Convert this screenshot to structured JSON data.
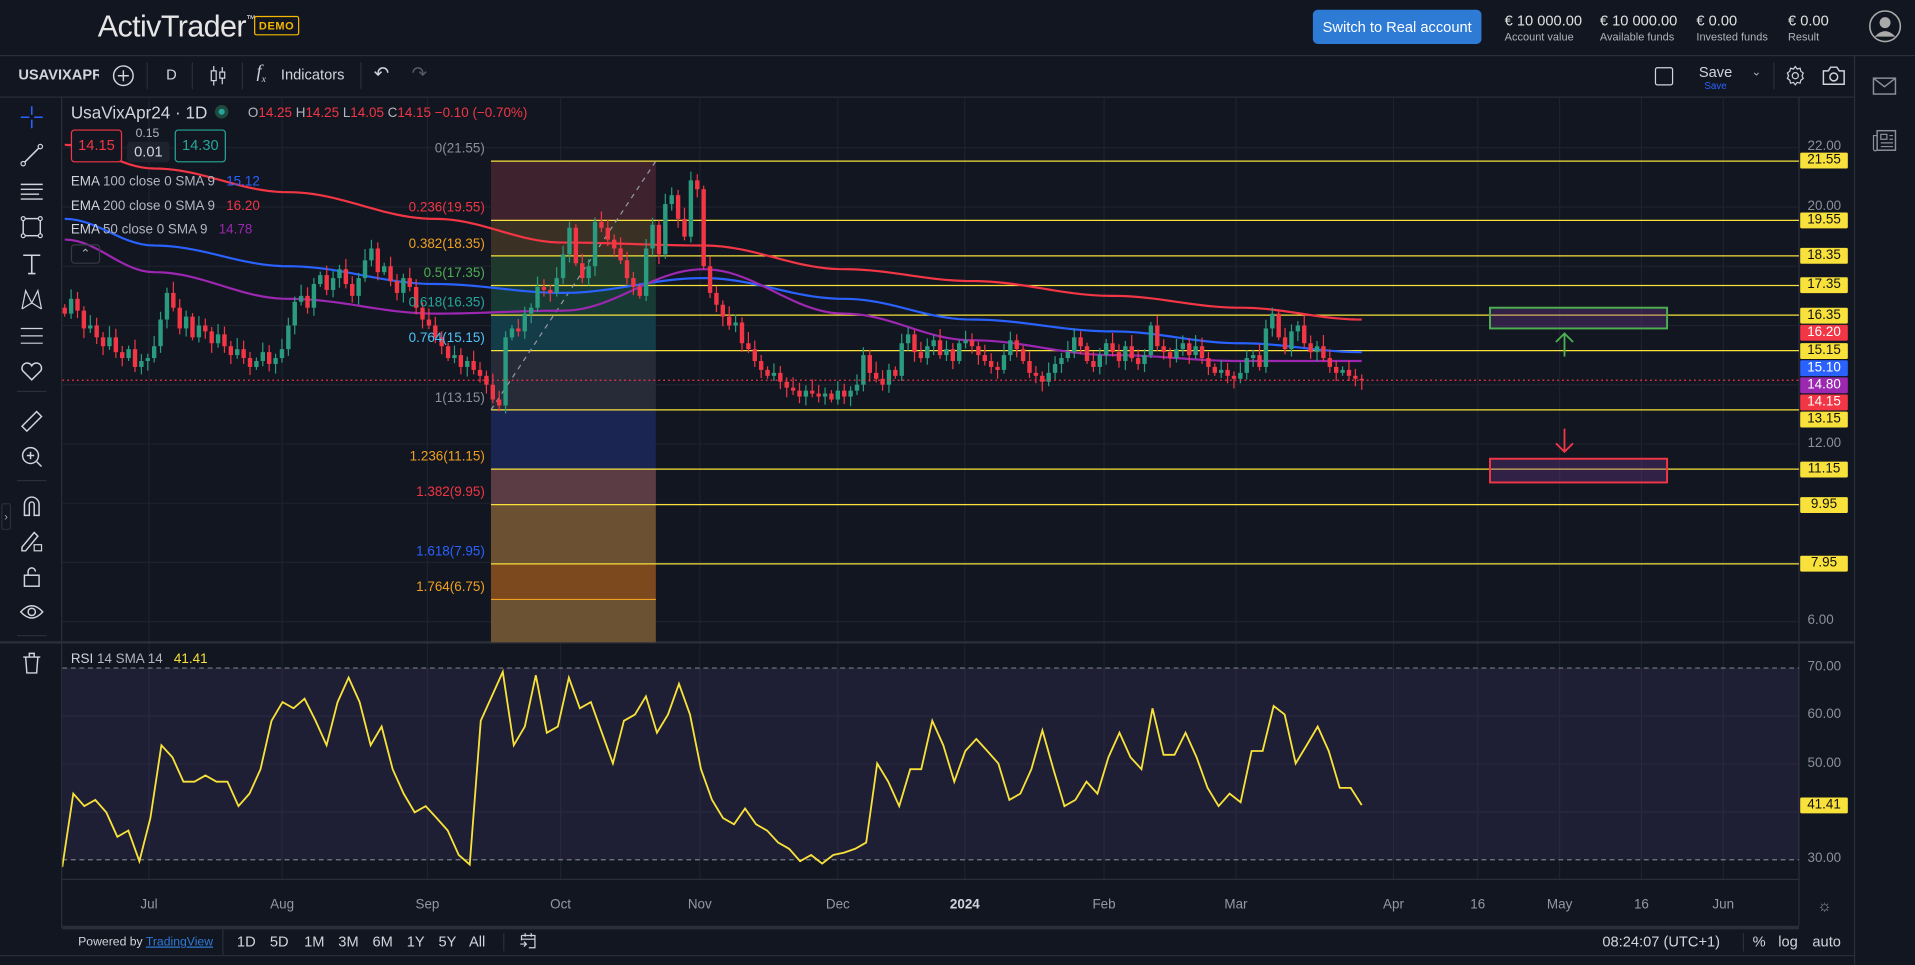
{
  "header": {
    "logo": "ActivTrader",
    "logo_tm": "™",
    "badge": "DEMO",
    "switch_button": "Switch to Real account",
    "stats": [
      {
        "value": "€ 10 000.00",
        "label": "Account value"
      },
      {
        "value": "€ 10 000.00",
        "label": "Available funds"
      },
      {
        "value": "€ 0.00",
        "label": "Invested funds"
      },
      {
        "value": "€ 0.00",
        "label": "Result"
      }
    ]
  },
  "toolbar": {
    "symbol": "USAVIXAPR",
    "interval": "D",
    "indicators": "Indicators",
    "save": "Save",
    "save_sub": "Save"
  },
  "legend": {
    "title": "UsaVixApr24 · 1D",
    "o_label": "O",
    "o": "14.25",
    "h_label": "H",
    "h": "14.25",
    "l_label": "L",
    "l": "14.05",
    "c_label": "C",
    "c": "14.15",
    "change": "−0.10 (−0.70%)",
    "sell": "14.15",
    "spread_top": "0.15",
    "spread": "0.01",
    "buy": "14.30",
    "emas": [
      {
        "name": "EMA",
        "params": "100 close 0 SMA 9",
        "value": "15.12",
        "color": "#2962ff"
      },
      {
        "name": "EMA",
        "params": "200 close 0 SMA 9",
        "value": "16.20",
        "color": "#f23645"
      },
      {
        "name": "EMA",
        "params": "50 close 0 SMA 9",
        "value": "14.78",
        "color": "#9c27b0"
      }
    ]
  },
  "rsi_legend": {
    "name": "RSI",
    "params": "14 SMA 14",
    "value": "41.41"
  },
  "colors": {
    "up": "#2b9b80",
    "down": "#f23645",
    "fib_line": "#f7e13a",
    "rsi": "#f7e13a",
    "ema100": "#2962ff",
    "ema200": "#f23645",
    "ema50": "#9c27b0"
  },
  "chart_data": {
    "type": "candlestick",
    "symbol": "UsaVixApr24",
    "interval": "1D",
    "ylim": [
      6,
      22
    ],
    "price_ticks": [
      "22.00",
      "20.00",
      "12.00",
      "6.00"
    ],
    "months": [
      {
        "month": "2023-06",
        "closes": [
          16.4,
          16.9,
          16.5,
          15.9,
          16.0,
          15.6,
          15.3,
          15.6,
          15.1,
          14.9,
          15.2,
          14.6,
          14.8,
          14.9
        ]
      },
      {
        "month": "2023-07",
        "closes": [
          15.3,
          16.2,
          17.1,
          16.6,
          15.9,
          16.3,
          15.6,
          16.0,
          15.8,
          15.4,
          15.7,
          15.3,
          15.0,
          15.2,
          14.9,
          14.6,
          14.8,
          15.1,
          14.7,
          14.9,
          15.2
        ]
      },
      {
        "month": "2023-08",
        "closes": [
          16.0,
          16.8,
          17.0,
          16.6,
          17.4,
          17.7,
          17.2,
          17.6,
          17.9,
          17.4,
          17.0,
          17.6,
          18.2,
          18.6,
          17.8,
          18.0,
          17.5,
          17.1,
          17.6,
          17.3,
          16.6,
          16.2,
          16.0
        ]
      },
      {
        "month": "2023-09",
        "closes": [
          15.6,
          15.3,
          14.9,
          15.0,
          14.6,
          14.8,
          14.5,
          14.3,
          14.0,
          13.5,
          13.3,
          15.6,
          15.9,
          15.8,
          16.4,
          16.6,
          17.3,
          17.2,
          17.1,
          17.6
        ]
      },
      {
        "month": "2023-10",
        "closes": [
          18.4,
          19.3,
          18.1,
          17.6,
          18.0,
          19.5,
          19.3,
          18.9,
          18.6,
          18.2,
          17.6,
          17.3,
          17.0,
          18.6,
          19.4,
          18.4,
          20.1,
          20.4,
          19.6,
          19.0,
          20.9,
          20.6
        ]
      },
      {
        "month": "2023-11",
        "closes": [
          18.0,
          17.1,
          16.7,
          16.3,
          16.0,
          16.1,
          15.4,
          15.2,
          14.8,
          14.5,
          14.3,
          14.4,
          14.1,
          13.9,
          13.8,
          13.6,
          13.8,
          13.7,
          13.6,
          13.7,
          13.5,
          13.8
        ]
      },
      {
        "month": "2023-12",
        "closes": [
          13.6,
          13.8,
          14.0,
          15.0,
          14.4,
          14.2,
          14.0,
          14.5,
          14.3,
          15.4,
          15.7,
          15.1,
          14.9,
          15.3,
          15.5,
          15.0,
          15.2,
          14.8,
          15.4,
          15.5
        ]
      },
      {
        "month": "2024-01",
        "closes": [
          15.3,
          15.0,
          14.8,
          14.6,
          14.5,
          15.0,
          15.5,
          15.2,
          14.8,
          14.4,
          14.3,
          14.1,
          14.4,
          14.7,
          14.9,
          15.1,
          15.6,
          15.3,
          14.8,
          14.6,
          15.0,
          15.4
        ]
      },
      {
        "month": "2024-02",
        "closes": [
          15.1,
          14.8,
          15.3,
          14.9,
          14.7,
          15.0,
          16.0,
          15.3,
          15.1,
          14.9,
          15.2,
          15.4,
          15.0,
          15.3,
          14.9,
          14.6,
          14.4,
          14.5,
          14.3,
          14.2
        ]
      },
      {
        "month": "2024-03",
        "closes": [
          14.4,
          14.9,
          15.0,
          14.6,
          15.9,
          16.4,
          15.6,
          15.2,
          15.8,
          16.0,
          15.4,
          15.1,
          15.3,
          14.9,
          14.6,
          14.4,
          14.5,
          14.3,
          14.2,
          14.15
        ]
      }
    ],
    "ema_month_start_values": {
      "ema200": [
        22.1,
        21.3,
        20.5,
        19.6,
        18.8,
        18.7,
        17.9,
        17.5,
        17.0,
        16.6,
        16.2
      ],
      "ema100": [
        19.6,
        18.7,
        18.0,
        17.4,
        17.1,
        17.6,
        16.9,
        16.2,
        15.8,
        15.4,
        15.1
      ],
      "ema50": [
        18.9,
        17.8,
        16.9,
        16.4,
        16.5,
        17.9,
        16.4,
        15.5,
        15.0,
        14.8,
        14.8
      ]
    },
    "fibonacci": {
      "from": 13.15,
      "to": 21.55,
      "levels": [
        {
          "ratio": "0",
          "price": 21.55,
          "label": "0(21.55)",
          "color": "#8a8f9c",
          "fill": "#3e222e"
        },
        {
          "ratio": "0.236",
          "price": 19.55,
          "label": "0.236(19.55)",
          "color": "#f23645",
          "fill": "#3a3024"
        },
        {
          "ratio": "0.382",
          "price": 18.35,
          "label": "0.382(18.35)",
          "color": "#f0a020",
          "fill": "#1f3a2c"
        },
        {
          "ratio": "0.5",
          "price": 17.35,
          "label": "0.5(17.35)",
          "color": "#4caf50",
          "fill": "#173b34"
        },
        {
          "ratio": "0.618",
          "price": 16.35,
          "label": "0.618(16.35)",
          "color": "#26a69a",
          "fill": "#133b48"
        },
        {
          "ratio": "0.764",
          "price": 15.15,
          "label": "0.764(15.15)",
          "color": "#4fc3f7",
          "fill": "#272b37"
        },
        {
          "ratio": "1",
          "price": 13.15,
          "label": "1(13.15)",
          "color": "#8a8f9c",
          "fill": "#1a2552"
        },
        {
          "ratio": "1.236",
          "price": 11.15,
          "label": "1.236(11.15)",
          "color": "#f0a020",
          "fill": "#5c3c44"
        },
        {
          "ratio": "1.382",
          "price": 9.95,
          "label": "1.382(9.95)",
          "color": "#f23645",
          "fill": "#6b5032"
        },
        {
          "ratio": "1.618",
          "price": 7.95,
          "label": "1.618(7.95)",
          "color": "#2962ff",
          "fill": "#7c481e"
        },
        {
          "ratio": "1.764",
          "price": 6.75,
          "label": "1.764(6.75)",
          "color": "#f0a020",
          "fill": "#6a5232"
        }
      ]
    },
    "zones": [
      {
        "type": "target-up",
        "top": 16.6,
        "bottom": 15.9,
        "border": "#4caf50"
      },
      {
        "type": "target-down",
        "top": 11.5,
        "bottom": 10.7,
        "border": "#f23645"
      }
    ],
    "price_badges": [
      {
        "value": "21.55",
        "bg": "#f7e13a",
        "fg": "#111"
      },
      {
        "value": "19.55",
        "bg": "#f7e13a",
        "fg": "#111"
      },
      {
        "value": "18.35",
        "bg": "#f7e13a",
        "fg": "#111"
      },
      {
        "value": "17.35",
        "bg": "#f7e13a",
        "fg": "#111"
      },
      {
        "value": "16.35",
        "bg": "#f7e13a",
        "fg": "#111"
      },
      {
        "value": "16.20",
        "bg": "#f23645",
        "fg": "#fff"
      },
      {
        "value": "15.15",
        "bg": "#f7e13a",
        "fg": "#111"
      },
      {
        "value": "15.10",
        "bg": "#2962ff",
        "fg": "#fff"
      },
      {
        "value": "14.80",
        "bg": "#9c27b0",
        "fg": "#fff"
      },
      {
        "value": "14.15",
        "bg": "#f23645",
        "fg": "#fff"
      },
      {
        "value": "13.15",
        "bg": "#f7e13a",
        "fg": "#111"
      },
      {
        "value": "11.15",
        "bg": "#f7e13a",
        "fg": "#111"
      },
      {
        "value": "9.95",
        "bg": "#f7e13a",
        "fg": "#111"
      },
      {
        "value": "7.95",
        "bg": "#f7e13a",
        "fg": "#111"
      }
    ],
    "last_price": 14.15,
    "rsi": {
      "ylim": [
        25,
        75
      ],
      "upper": 70,
      "lower": 30,
      "ticks": [
        "70.00",
        "60.00",
        "50.00",
        "30.00"
      ],
      "last": "41.41",
      "values": [
        28.5,
        43.8,
        41.2,
        42.5,
        39.9,
        34.8,
        36.1,
        29.7,
        38.7,
        53.9,
        51.4,
        46.3,
        46.3,
        47.6,
        46.3,
        46.3,
        41.2,
        43.8,
        48.9,
        59,
        62.9,
        61.6,
        63.6,
        59,
        53.9,
        62.9,
        68,
        62.9,
        53.9,
        57.8,
        48.9,
        43.8,
        39.9,
        41.2,
        38.7,
        36.1,
        31,
        29,
        59,
        64.1,
        69.2,
        53.9,
        57.8,
        68.5,
        56.5,
        57.8,
        68,
        61.6,
        62.9,
        56.5,
        50.1,
        59,
        60.3,
        64.1,
        56.5,
        60.3,
        66.7,
        60.3,
        48.9,
        42.5,
        38.7,
        37.4,
        40.7,
        37.4,
        36.1,
        33.6,
        32.3,
        29.7,
        31,
        29.2,
        31,
        31.5,
        32.3,
        33.6,
        50.1,
        46.3,
        41.2,
        48.9,
        48.9,
        59,
        53.9,
        46.3,
        52.7,
        55.2,
        52.7,
        50.1,
        42.5,
        43.8,
        48.9,
        57,
        48.9,
        41.2,
        42.5,
        46.3,
        43.8,
        51.4,
        56.5,
        51.4,
        48.9,
        61.6,
        51.9,
        51.9,
        56.5,
        51.4,
        45,
        41.2,
        43.8,
        42,
        52.7,
        52.7,
        62.1,
        60.3,
        50.1,
        53.9,
        57.8,
        52.7,
        45,
        45,
        41.41
      ]
    },
    "time_ticks": [
      "Jul",
      "Aug",
      "Sep",
      "Oct",
      "Nov",
      "Dec",
      "2024",
      "Feb",
      "Mar",
      "Apr",
      "16",
      "May",
      "16",
      "Jun"
    ]
  },
  "bottom": {
    "powered": "Powered by ",
    "tradingview": "TradingView",
    "ranges": [
      "1D",
      "5D",
      "1M",
      "3M",
      "6M",
      "1Y",
      "5Y",
      "All"
    ],
    "clock": "08:24:07 (UTC+1)",
    "percent": "%",
    "log": "log",
    "auto": "auto"
  }
}
